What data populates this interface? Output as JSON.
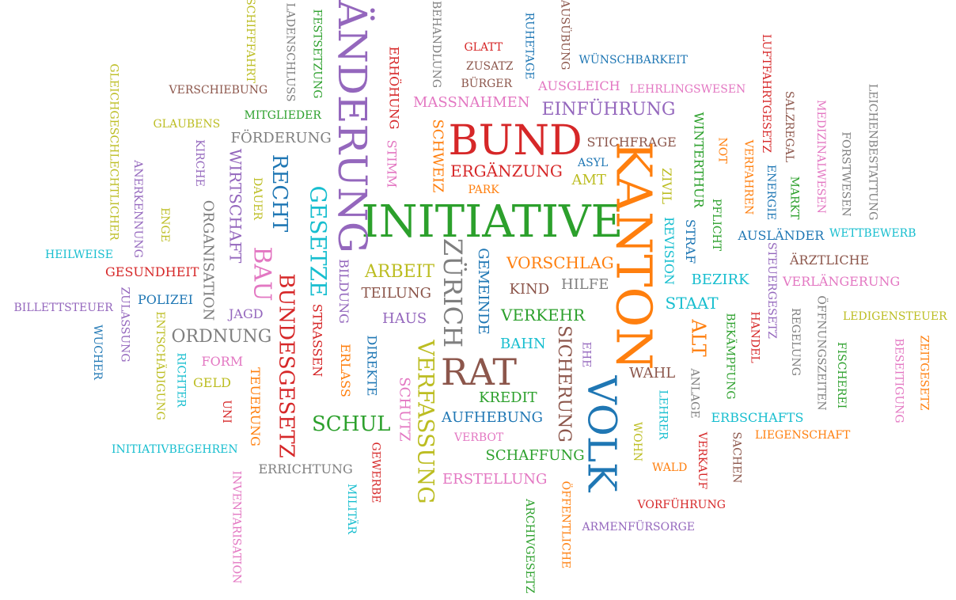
{
  "palette": {
    "blue": "#1f77b4",
    "orange": "#ff7f0e",
    "green": "#2ca02c",
    "red": "#d62728",
    "purple": "#9467bd",
    "brown": "#8c564b",
    "pink": "#e377c2",
    "gray": "#7f7f7f",
    "olive": "#bcbd22",
    "cyan": "#17becf"
  },
  "words": [
    {
      "text": "INITIATIVE",
      "color": "green"
    },
    {
      "text": "KANTON",
      "color": "orange"
    },
    {
      "text": "ÄNDERUNG",
      "color": "purple"
    },
    {
      "text": "BUND",
      "color": "red"
    },
    {
      "text": "VOLK",
      "color": "blue"
    },
    {
      "text": "RAT",
      "color": "brown"
    },
    {
      "text": "ZÜRICH",
      "color": "gray"
    },
    {
      "text": "VERFASSUNG",
      "color": "olive"
    },
    {
      "text": "GESETZE",
      "color": "cyan"
    },
    {
      "text": "BAU",
      "color": "pink"
    },
    {
      "text": "BUNDESGESETZ",
      "color": "red"
    },
    {
      "text": "RECHT",
      "color": "blue"
    },
    {
      "text": "SCHUL",
      "color": "green"
    },
    {
      "text": "ORDNUNG",
      "color": "gray"
    },
    {
      "text": "SICHERUNG",
      "color": "brown"
    },
    {
      "text": "ALT",
      "color": "orange"
    },
    {
      "text": "ARBEIT",
      "color": "olive"
    },
    {
      "text": "EINFÜHRUNG",
      "color": "purple"
    },
    {
      "text": "WIRTSCHAFT",
      "color": "purple"
    },
    {
      "text": "MASSNAHMEN",
      "color": "pink"
    },
    {
      "text": "ERGÄNZUNG",
      "color": "red"
    },
    {
      "text": "VORSCHLAG",
      "color": "orange"
    },
    {
      "text": "STAAT",
      "color": "cyan"
    },
    {
      "text": "SCHWEIZ",
      "color": "orange"
    },
    {
      "text": "GEMEINDE",
      "color": "blue"
    },
    {
      "text": "VERKEHR",
      "color": "green"
    },
    {
      "text": "AUFHEBUNG",
      "color": "blue"
    },
    {
      "text": "WAHL",
      "color": "brown"
    },
    {
      "text": "SCHUTZ",
      "color": "pink"
    },
    {
      "text": "BEZIRK",
      "color": "cyan"
    },
    {
      "text": "ORGANISATION",
      "color": "gray"
    },
    {
      "text": "KREDIT",
      "color": "green"
    },
    {
      "text": "SCHAFFUNG",
      "color": "green"
    },
    {
      "text": "ERSTELLUNG",
      "color": "pink"
    },
    {
      "text": "HILFE",
      "color": "gray"
    },
    {
      "text": "KIND",
      "color": "brown"
    },
    {
      "text": "TEILUNG",
      "color": "brown"
    },
    {
      "text": "BAHN",
      "color": "cyan"
    },
    {
      "text": "AMT",
      "color": "olive"
    },
    {
      "text": "HAUS",
      "color": "purple"
    },
    {
      "text": "FÖRDERUNG",
      "color": "gray"
    },
    {
      "text": "STICHFRAGE",
      "color": "brown"
    },
    {
      "text": "AUSGLEICH",
      "color": "pink"
    },
    {
      "text": "ERRICHTUNG",
      "color": "gray"
    },
    {
      "text": "BILDUNG",
      "color": "purple"
    },
    {
      "text": "STRASSEN",
      "color": "red"
    },
    {
      "text": "ERLASS",
      "color": "orange"
    },
    {
      "text": "DIREKTE",
      "color": "blue"
    },
    {
      "text": "REVISION",
      "color": "cyan"
    },
    {
      "text": "STRAF",
      "color": "blue"
    },
    {
      "text": "WINTERTHUR",
      "color": "green"
    },
    {
      "text": "ZIVIL",
      "color": "olive"
    },
    {
      "text": "ERHÖHUNG",
      "color": "red"
    },
    {
      "text": "STIMM",
      "color": "pink"
    },
    {
      "text": "GESUNDHEIT",
      "color": "red"
    },
    {
      "text": "POLIZEI",
      "color": "blue"
    },
    {
      "text": "JAGD",
      "color": "purple"
    },
    {
      "text": "FORM",
      "color": "pink"
    },
    {
      "text": "GELD",
      "color": "olive"
    },
    {
      "text": "TEUERUNG",
      "color": "orange"
    },
    {
      "text": "AUSLÄNDER",
      "color": "blue"
    },
    {
      "text": "WETTBEWERB",
      "color": "cyan"
    },
    {
      "text": "ÄRZTLICHE",
      "color": "brown"
    },
    {
      "text": "VERLÄNGERUNG",
      "color": "pink"
    },
    {
      "text": "LEDIGENSTEUER",
      "color": "olive"
    },
    {
      "text": "ERBSCHAFTS",
      "color": "cyan"
    },
    {
      "text": "LIEGENSCHAFT",
      "color": "orange"
    },
    {
      "text": "VORFÜHRUNG",
      "color": "red"
    },
    {
      "text": "ARMENFÜRSORGE",
      "color": "purple"
    },
    {
      "text": "WALD",
      "color": "orange"
    },
    {
      "text": "VERBOT",
      "color": "pink"
    },
    {
      "text": "MITGLIEDER",
      "color": "green"
    },
    {
      "text": "GLAUBENS",
      "color": "olive"
    },
    {
      "text": "VERSCHIEBUNG",
      "color": "brown"
    },
    {
      "text": "HEILWEISE",
      "color": "cyan"
    },
    {
      "text": "BILLETTSTEUER",
      "color": "purple"
    },
    {
      "text": "INITIATIVBEGEHREN",
      "color": "cyan"
    },
    {
      "text": "WÜNSCHBARKEIT",
      "color": "blue"
    },
    {
      "text": "LEHRLINGSWESEN",
      "color": "pink"
    },
    {
      "text": "GLATT",
      "color": "red"
    },
    {
      "text": "ZUSATZ",
      "color": "brown"
    },
    {
      "text": "BÜRGER",
      "color": "brown"
    },
    {
      "text": "ASYL",
      "color": "blue"
    },
    {
      "text": "PARK",
      "color": "orange"
    },
    {
      "text": "UNI",
      "color": "red"
    },
    {
      "text": "RICHTER",
      "color": "cyan"
    },
    {
      "text": "ENTSCHÄDIGUNG",
      "color": "olive"
    },
    {
      "text": "ZULASSUNG",
      "color": "purple"
    },
    {
      "text": "WUCHER",
      "color": "blue"
    },
    {
      "text": "ENGE",
      "color": "olive"
    },
    {
      "text": "DAUER",
      "color": "olive"
    },
    {
      "text": "KIRCHE",
      "color": "purple"
    },
    {
      "text": "ANERKENNUNG",
      "color": "purple"
    },
    {
      "text": "GLEICHGESCHLECHTLICHER",
      "color": "olive"
    },
    {
      "text": "SCHIFFFAHRT",
      "color": "olive"
    },
    {
      "text": "LADENSCHLUSS",
      "color": "gray"
    },
    {
      "text": "FESTSETZUNG",
      "color": "green"
    },
    {
      "text": "BEHANDLUNG",
      "color": "gray"
    },
    {
      "text": "RUHETAGE",
      "color": "blue"
    },
    {
      "text": "AUSÜBUNG",
      "color": "brown"
    },
    {
      "text": "LUFTFAHRTGESETZ",
      "color": "red"
    },
    {
      "text": "SALZREGAL",
      "color": "brown"
    },
    {
      "text": "MEDIZINALWESEN",
      "color": "pink"
    },
    {
      "text": "FORSTWESEN",
      "color": "gray"
    },
    {
      "text": "LEICHENBESTATTUNG",
      "color": "gray"
    },
    {
      "text": "NOT",
      "color": "orange"
    },
    {
      "text": "VERFAHREN",
      "color": "orange"
    },
    {
      "text": "ENERGIE",
      "color": "blue"
    },
    {
      "text": "MARKT",
      "color": "green"
    },
    {
      "text": "PFLICHT",
      "color": "green"
    },
    {
      "text": "STEUERGESETZ",
      "color": "purple"
    },
    {
      "text": "HANDEL",
      "color": "red"
    },
    {
      "text": "REGELUNG",
      "color": "gray"
    },
    {
      "text": "ÖFFNUNGSZEITEN",
      "color": "gray"
    },
    {
      "text": "FISCHEREI",
      "color": "green"
    },
    {
      "text": "BESEITIGUNG",
      "color": "pink"
    },
    {
      "text": "ZEITGESETZ",
      "color": "orange"
    },
    {
      "text": "BEKÄMPFUNG",
      "color": "green"
    },
    {
      "text": "ANLAGE",
      "color": "gray"
    },
    {
      "text": "LEHRER",
      "color": "cyan"
    },
    {
      "text": "VERKAUF",
      "color": "red"
    },
    {
      "text": "SACHEN",
      "color": "brown"
    },
    {
      "text": "WOHN",
      "color": "olive"
    },
    {
      "text": "EHE",
      "color": "purple"
    },
    {
      "text": "ÖFFENTLICHE",
      "color": "orange"
    },
    {
      "text": "ARCHIVGESETZ",
      "color": "green"
    },
    {
      "text": "GEWERBE",
      "color": "red"
    },
    {
      "text": "MILITÄR",
      "color": "cyan"
    },
    {
      "text": "INVENTARISATION",
      "color": "pink"
    }
  ]
}
